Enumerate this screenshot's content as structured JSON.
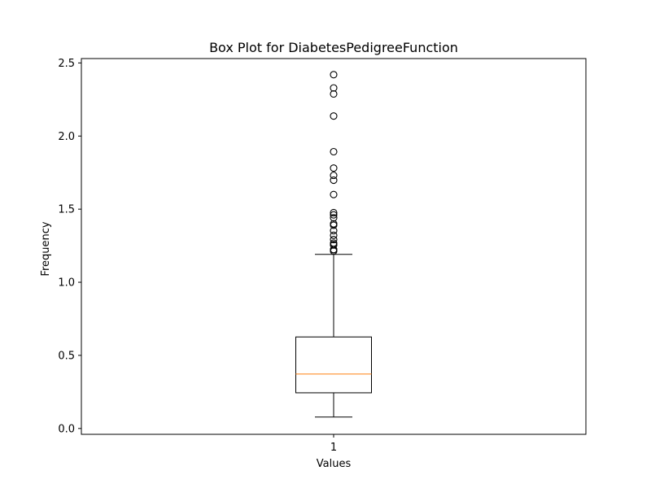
{
  "chart_data": {
    "type": "box",
    "title": "Box Plot for DiabetesPedigreeFunction",
    "xlabel": "Values",
    "ylabel": "Frequency",
    "categories": [
      "1"
    ],
    "ylim": [
      -0.04,
      2.53
    ],
    "yticks": [
      0.0,
      0.5,
      1.0,
      1.5,
      2.0,
      2.5
    ],
    "ytick_labels": [
      "0.0",
      "0.5",
      "1.0",
      "1.5",
      "2.0",
      "2.5"
    ],
    "grid": false,
    "box": {
      "whisker_low": 0.078,
      "q1": 0.244,
      "median": 0.3725,
      "q3": 0.626,
      "whisker_high": 1.191
    },
    "outliers": [
      2.42,
      2.329,
      2.288,
      2.137,
      1.893,
      1.781,
      1.731,
      1.698,
      1.6,
      1.476,
      1.461,
      1.441,
      1.4,
      1.39,
      1.353,
      1.321,
      1.292,
      1.268,
      1.258,
      1.255,
      1.224,
      1.222,
      1.213
    ],
    "colors": {
      "box": "#000000",
      "median": "#ff7f0e",
      "outlier": "#000000"
    }
  }
}
